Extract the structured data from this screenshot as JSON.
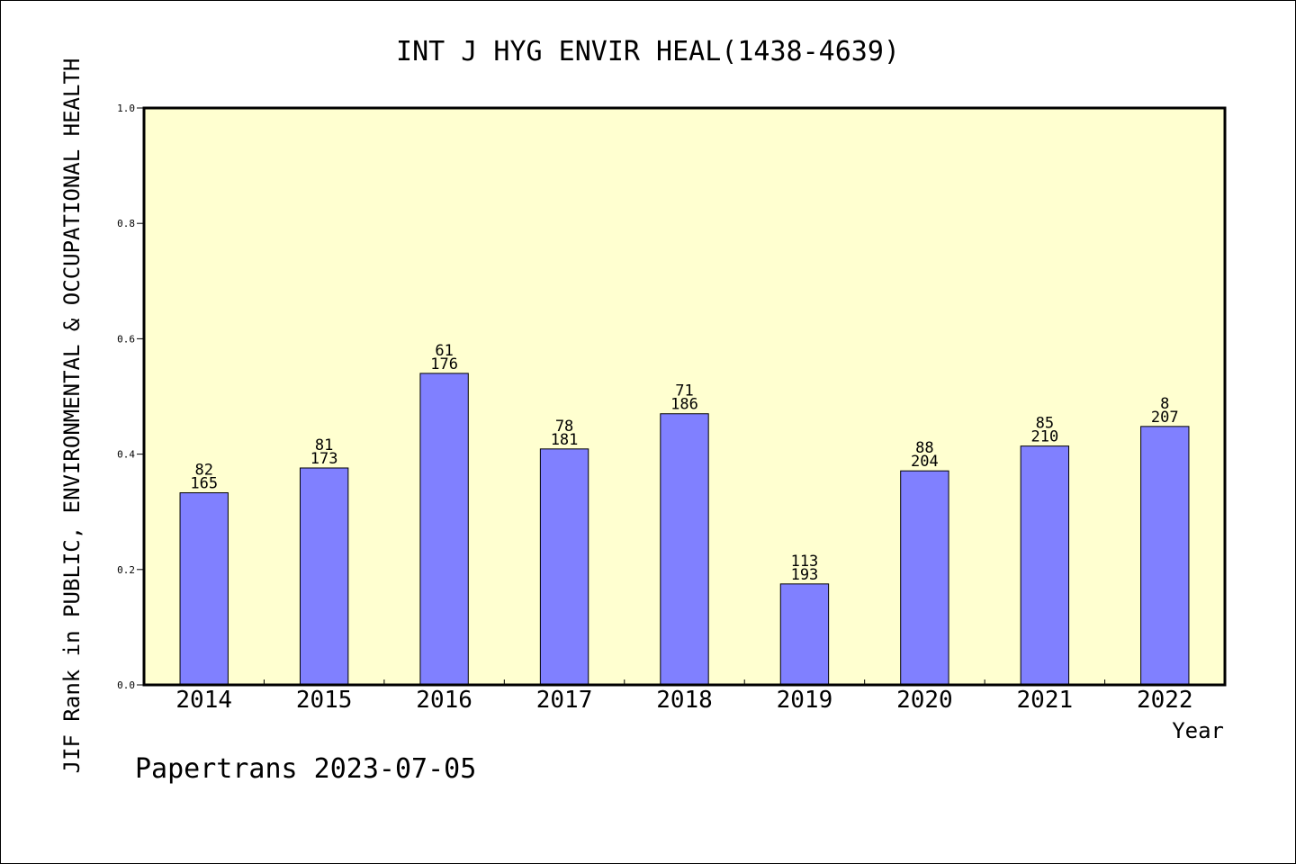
{
  "chart_data": {
    "type": "bar",
    "title": "INT J HYG ENVIR HEAL(1438-4639)",
    "xlabel": "Year",
    "ylabel": "JIF Rank in PUBLIC, ENVIRONMENTAL & OCCUPATIONAL HEALTH",
    "footer": "Papertrans 2023-07-05",
    "ylim": [
      0,
      1.0
    ],
    "yticks": [
      "0.0",
      "0.2",
      "0.4",
      "0.6",
      "0.8",
      "1.0"
    ],
    "categories": [
      "2014",
      "2015",
      "2016",
      "2017",
      "2018",
      "2019",
      "2020",
      "2021",
      "2022"
    ],
    "values": [
      0.333,
      0.376,
      0.54,
      0.409,
      0.47,
      0.175,
      0.371,
      0.414,
      0.448
    ],
    "ranks": [
      "82",
      "81",
      "61",
      "78",
      "71",
      "113",
      "88",
      "85",
      "8"
    ],
    "totals": [
      "165",
      "173",
      "176",
      "181",
      "186",
      "193",
      "204",
      "210",
      "207"
    ],
    "grid": false,
    "colors": {
      "bar": "#8080ff",
      "plot_bg": "#ffffd0",
      "axis": "#000000"
    }
  }
}
